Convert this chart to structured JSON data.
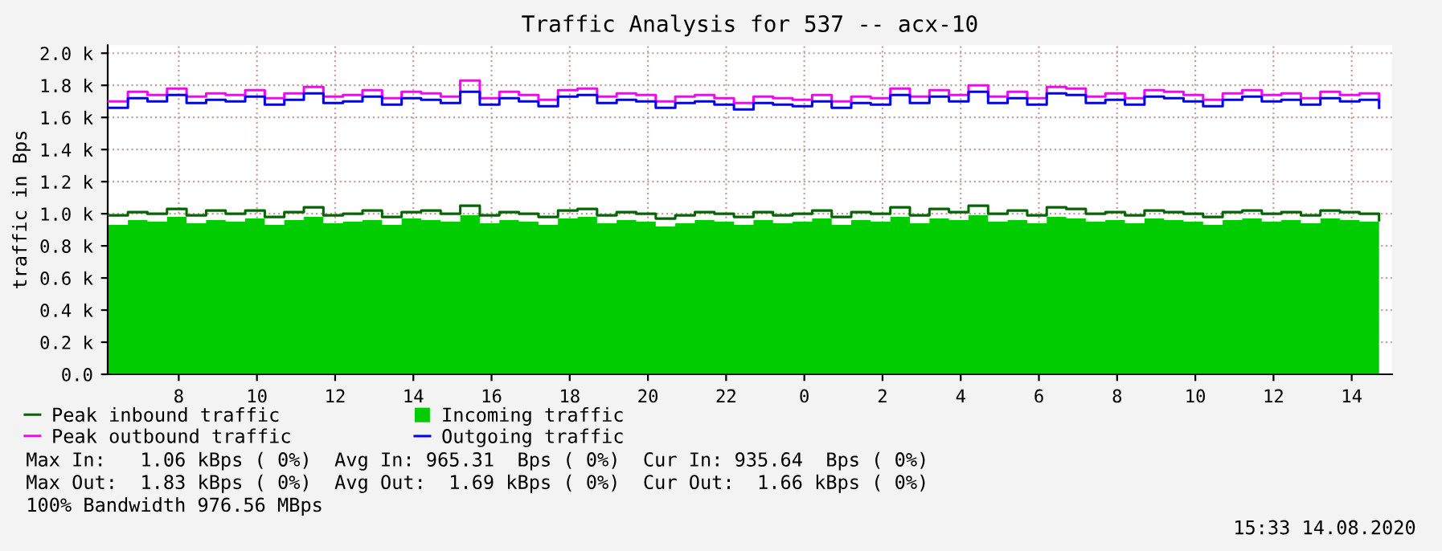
{
  "chart_data": {
    "type": "area",
    "title": "Traffic Analysis for 537 -- acx-10",
    "ylabel": "traffic in Bps",
    "x": [
      "2020-08-13T06:12",
      "2020-08-13T06:42",
      "2020-08-13T07:12",
      "2020-08-13T07:42",
      "2020-08-13T08:12",
      "2020-08-13T08:42",
      "2020-08-13T09:12",
      "2020-08-13T09:42",
      "2020-08-13T10:12",
      "2020-08-13T10:42",
      "2020-08-13T11:12",
      "2020-08-13T11:42",
      "2020-08-13T12:12",
      "2020-08-13T12:42",
      "2020-08-13T13:12",
      "2020-08-13T13:42",
      "2020-08-13T14:12",
      "2020-08-13T14:42",
      "2020-08-13T15:12",
      "2020-08-13T15:42",
      "2020-08-13T16:12",
      "2020-08-13T16:42",
      "2020-08-13T17:12",
      "2020-08-13T17:42",
      "2020-08-13T18:12",
      "2020-08-13T18:42",
      "2020-08-13T19:12",
      "2020-08-13T19:42",
      "2020-08-13T20:12",
      "2020-08-13T20:42",
      "2020-08-13T21:12",
      "2020-08-13T21:42",
      "2020-08-13T22:12",
      "2020-08-13T22:42",
      "2020-08-13T23:12",
      "2020-08-13T23:42",
      "2020-08-14T00:12",
      "2020-08-14T00:42",
      "2020-08-14T01:12",
      "2020-08-14T01:42",
      "2020-08-14T02:12",
      "2020-08-14T02:42",
      "2020-08-14T03:12",
      "2020-08-14T03:42",
      "2020-08-14T04:12",
      "2020-08-14T04:42",
      "2020-08-14T05:12",
      "2020-08-14T05:42",
      "2020-08-14T06:12",
      "2020-08-14T06:42",
      "2020-08-14T07:12",
      "2020-08-14T07:42",
      "2020-08-14T08:12",
      "2020-08-14T08:42",
      "2020-08-14T09:12",
      "2020-08-14T09:42",
      "2020-08-14T10:12",
      "2020-08-14T10:42",
      "2020-08-14T11:12",
      "2020-08-14T11:42",
      "2020-08-14T12:12",
      "2020-08-14T12:42",
      "2020-08-14T13:12",
      "2020-08-14T13:42",
      "2020-08-14T14:12",
      "2020-08-14T14:42"
    ],
    "series": [
      {
        "name": "Peak inbound traffic",
        "type": "step",
        "color": "#006600",
        "values": [
          990,
          1010,
          1000,
          1030,
          990,
          1020,
          1000,
          1020,
          980,
          1010,
          1040,
          990,
          1000,
          1020,
          980,
          1010,
          1020,
          1000,
          1050,
          990,
          1010,
          1000,
          980,
          1020,
          1030,
          990,
          1010,
          1000,
          970,
          990,
          1010,
          1000,
          980,
          1010,
          990,
          1000,
          1020,
          980,
          1010,
          1000,
          1040,
          990,
          1030,
          1010,
          1050,
          1000,
          1020,
          990,
          1040,
          1030,
          1000,
          1010,
          990,
          1020,
          1010,
          1000,
          980,
          1010,
          1020,
          1000,
          1010,
          990,
          1020,
          1010,
          1000,
          960
        ]
      },
      {
        "name": "Incoming traffic",
        "color": "#00cc00",
        "values": [
          930,
          960,
          950,
          980,
          940,
          960,
          950,
          970,
          930,
          960,
          980,
          940,
          950,
          960,
          930,
          970,
          960,
          950,
          990,
          940,
          960,
          950,
          930,
          970,
          980,
          940,
          960,
          950,
          920,
          940,
          960,
          950,
          930,
          960,
          940,
          950,
          970,
          930,
          960,
          950,
          980,
          940,
          970,
          960,
          990,
          950,
          960,
          940,
          980,
          970,
          950,
          960,
          940,
          970,
          960,
          950,
          930,
          960,
          970,
          950,
          960,
          940,
          970,
          960,
          950,
          930
        ]
      },
      {
        "name": "Peak outbound traffic",
        "type": "step",
        "color": "#ff00ff",
        "values": [
          1700,
          1760,
          1740,
          1780,
          1730,
          1750,
          1740,
          1770,
          1720,
          1750,
          1790,
          1730,
          1740,
          1770,
          1720,
          1760,
          1750,
          1730,
          1830,
          1720,
          1760,
          1740,
          1710,
          1770,
          1780,
          1730,
          1750,
          1740,
          1700,
          1730,
          1740,
          1720,
          1690,
          1730,
          1720,
          1710,
          1740,
          1700,
          1730,
          1720,
          1780,
          1730,
          1770,
          1740,
          1800,
          1730,
          1760,
          1720,
          1790,
          1780,
          1730,
          1750,
          1720,
          1770,
          1760,
          1740,
          1710,
          1750,
          1770,
          1740,
          1750,
          1720,
          1760,
          1740,
          1750,
          1700
        ]
      },
      {
        "name": "Outgoing traffic",
        "type": "step",
        "color": "#0000ff",
        "values": [
          1660,
          1720,
          1700,
          1740,
          1690,
          1710,
          1700,
          1730,
          1680,
          1710,
          1750,
          1690,
          1700,
          1730,
          1680,
          1720,
          1710,
          1690,
          1760,
          1680,
          1720,
          1700,
          1670,
          1730,
          1740,
          1690,
          1710,
          1700,
          1660,
          1690,
          1700,
          1680,
          1650,
          1690,
          1680,
          1670,
          1700,
          1660,
          1690,
          1680,
          1740,
          1690,
          1730,
          1700,
          1760,
          1690,
          1720,
          1680,
          1750,
          1740,
          1690,
          1710,
          1680,
          1730,
          1720,
          1700,
          1670,
          1710,
          1730,
          1700,
          1710,
          1680,
          1720,
          1700,
          1710,
          1660
        ]
      }
    ],
    "xlim": [
      "2020-08-13T06:11",
      "2020-08-14T15:02"
    ],
    "xticks": [
      {
        "value": "2020-08-13T08:00",
        "label": "8"
      },
      {
        "value": "2020-08-13T10:00",
        "label": "10"
      },
      {
        "value": "2020-08-13T12:00",
        "label": "12"
      },
      {
        "value": "2020-08-13T14:00",
        "label": "14"
      },
      {
        "value": "2020-08-13T16:00",
        "label": "16"
      },
      {
        "value": "2020-08-13T18:00",
        "label": "18"
      },
      {
        "value": "2020-08-13T20:00",
        "label": "20"
      },
      {
        "value": "2020-08-13T22:00",
        "label": "22"
      },
      {
        "value": "2020-08-14T00:00",
        "label": "0"
      },
      {
        "value": "2020-08-14T02:00",
        "label": "2"
      },
      {
        "value": "2020-08-14T04:00",
        "label": "4"
      },
      {
        "value": "2020-08-14T06:00",
        "label": "6"
      },
      {
        "value": "2020-08-14T08:00",
        "label": "8"
      },
      {
        "value": "2020-08-14T10:00",
        "label": "10"
      },
      {
        "value": "2020-08-14T12:00",
        "label": "12"
      },
      {
        "value": "2020-08-14T14:00",
        "label": "14"
      }
    ],
    "ylim": [
      0,
      2050
    ],
    "yticks": [
      {
        "value": 0,
        "label": "0.0"
      },
      {
        "value": 200,
        "label": "0.2 k"
      },
      {
        "value": 400,
        "label": "0.4 k"
      },
      {
        "value": 600,
        "label": "0.6 k"
      },
      {
        "value": 800,
        "label": "0.8 k"
      },
      {
        "value": 1000,
        "label": "1.0 k"
      },
      {
        "value": 1200,
        "label": "1.2 k"
      },
      {
        "value": 1400,
        "label": "1.4 k"
      },
      {
        "value": 1600,
        "label": "1.6 k"
      },
      {
        "value": 1800,
        "label": "1.8 k"
      },
      {
        "value": 2000,
        "label": "2.0 k"
      }
    ],
    "grid": true,
    "legend": "bottom",
    "line_style": "solid",
    "annotations": [
      "Max In:   1.06 kBps ( 0%)  Avg In: 965.31  Bps ( 0%)  Cur In: 935.64  Bps ( 0%)",
      "Max Out:  1.83 kBps ( 0%)  Avg Out:  1.69 kBps ( 0%)  Cur Out:  1.66 kBps ( 0%)",
      "100% Bandwidth 976.56 MBps",
      "15:33 14.08.2020"
    ]
  }
}
